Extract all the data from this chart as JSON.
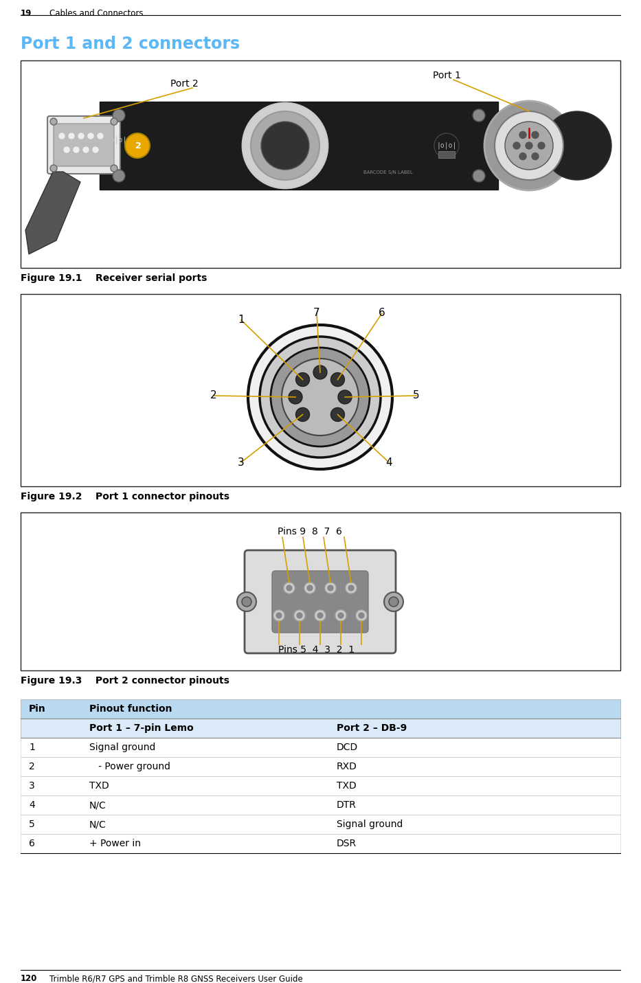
{
  "page_header_num": "19",
  "page_header_text": "Cables and Connectors",
  "section_title": "Port 1 and 2 connectors",
  "section_title_color": "#5bb8f5",
  "fig1_caption": "Figure 19.1    Receiver serial ports",
  "fig1_port2_label": "Port 2",
  "fig1_port1_label": "Port 1",
  "fig2_caption": "Figure 19.2    Port 1 connector pinouts",
  "fig3_caption": "Figure 19.3    Port 2 connector pinouts",
  "fig3_pins_top": "Pins 9  8  7  6",
  "fig3_pins_bot": "Pins 5  4  3  2  1",
  "table_header_bg": "#b8d9f0",
  "table_subhdr_bg": "#daeaf8",
  "table_header_pin": "Pin",
  "table_header_func": "Pinout function",
  "table_col2_port1": "Port 1 – 7-pin Lemo",
  "table_col2_port2": "Port 2 – DB-9",
  "table_rows": [
    [
      "1",
      "Signal ground",
      "DCD"
    ],
    [
      "2",
      "   - Power ground",
      "RXD"
    ],
    [
      "3",
      "TXD",
      "TXD"
    ],
    [
      "4",
      "N/C",
      "DTR"
    ],
    [
      "5",
      "N/C",
      "Signal ground"
    ],
    [
      "6",
      "+ Power in",
      "DSR"
    ]
  ],
  "page_footer_num": "120",
  "page_footer_text": "Trimble R6/R7 GPS and Trimble R8 GNSS Receivers User Guide",
  "bg_color": "#ffffff",
  "text_color": "#000000",
  "label_line_color": "#d4a000"
}
